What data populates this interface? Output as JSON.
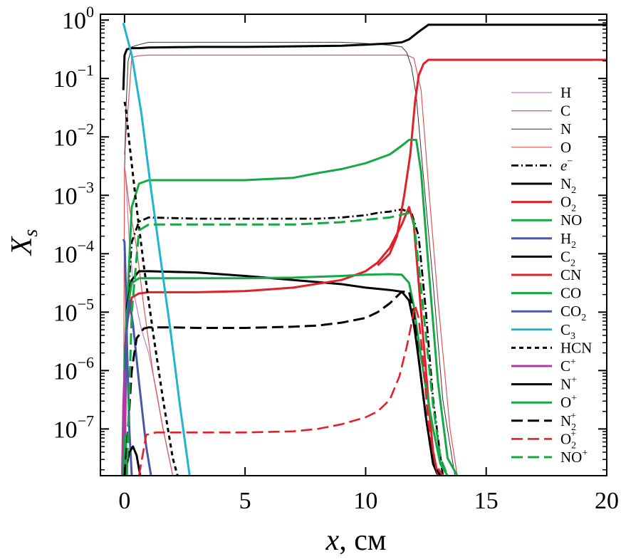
{
  "chart_data": {
    "type": "line",
    "xlabel_var": "x",
    "xlabel_unit": ", см",
    "ylabel_var": "X",
    "ylabel_sub": "s",
    "xlim": [
      -1,
      20
    ],
    "ylim_log10": [
      -7.8,
      0.1
    ],
    "x_ticks": [
      {
        "value": 0,
        "label": "0"
      },
      {
        "value": 5,
        "label": "5"
      },
      {
        "value": 10,
        "label": "10"
      },
      {
        "value": 15,
        "label": "15"
      },
      {
        "value": 20,
        "label": "20"
      }
    ],
    "y_ticks": [
      {
        "exp": 0,
        "base": "10",
        "sup": "0"
      },
      {
        "exp": -1,
        "base": "10",
        "sup": "−1"
      },
      {
        "exp": -2,
        "base": "10",
        "sup": "−2"
      },
      {
        "exp": -3,
        "base": "10",
        "sup": "−3"
      },
      {
        "exp": -4,
        "base": "10",
        "sup": "−4"
      },
      {
        "exp": -5,
        "base": "10",
        "sup": "−5"
      },
      {
        "exp": -6,
        "base": "10",
        "sup": "−6"
      },
      {
        "exp": -7,
        "base": "10",
        "sup": "−7"
      }
    ],
    "series": [
      {
        "name": "H",
        "label": "H",
        "sub": "",
        "sup": "",
        "italic": false,
        "color": "#c77cc4",
        "width": 1.2,
        "dash": "",
        "x": [
          0,
          0.05,
          0.2,
          0.4,
          0.7,
          1.0,
          1.3,
          1.6,
          2.0
        ],
        "y": [
          -2.5,
          -2.7,
          -3.8,
          -4.7,
          -5.3,
          -5.7,
          -6.3,
          -7.0,
          -7.8
        ]
      },
      {
        "name": "C",
        "label": "C",
        "sub": "",
        "sup": "",
        "italic": false,
        "color": "#e05555",
        "width": 1.2,
        "dash": "",
        "x": [
          0,
          0.05,
          0.15,
          0.3,
          0.6,
          1.0,
          3,
          5,
          7,
          9,
          10,
          11,
          11.7,
          12.0,
          12.3,
          12.6,
          13.0,
          13.5,
          13.8
        ],
        "y": [
          -2.3,
          -2.0,
          -1.5,
          -0.64,
          -0.61,
          -0.6,
          -0.6,
          -0.6,
          -0.6,
          -0.6,
          -0.6,
          -0.6,
          -0.6,
          -0.65,
          -1.2,
          -2.8,
          -4.8,
          -7.0,
          -7.8
        ]
      },
      {
        "name": "N",
        "label": "N",
        "sub": "",
        "sup": "",
        "italic": false,
        "color": "#333333",
        "width": 1.0,
        "dash": "",
        "x": [
          0,
          0.05,
          0.15,
          0.3,
          0.6,
          1.0,
          3,
          5,
          7,
          9,
          10,
          11,
          11.5,
          11.7,
          11.9,
          12.1,
          12.4,
          12.8,
          13.2,
          13.7
        ],
        "y": [
          -2.6,
          -1.6,
          -0.7,
          -0.46,
          -0.42,
          -0.38,
          -0.38,
          -0.38,
          -0.38,
          -0.38,
          -0.4,
          -0.43,
          -0.46,
          -0.55,
          -0.8,
          -1.3,
          -2.7,
          -4.5,
          -6.5,
          -7.8
        ]
      },
      {
        "name": "O",
        "label": "O",
        "sub": "",
        "sup": "",
        "italic": false,
        "color": "#e05555",
        "width": 1.2,
        "dash": "",
        "x": [
          -0.05,
          0,
          0.2,
          0.5,
          0.8,
          1.2,
          1.6,
          2.0
        ],
        "y": [
          -7.8,
          -2.5,
          -3.2,
          -3.9,
          -4.9,
          -6.1,
          -7.0,
          -7.8
        ]
      },
      {
        "name": "e-",
        "label": "e",
        "sub": "",
        "sup": "−",
        "italic": true,
        "color": "#000000",
        "width": 2.8,
        "dash": "10,4,2,4",
        "x": [
          -0.05,
          0,
          0.1,
          0.3,
          0.6,
          1.0,
          3,
          5,
          7,
          8,
          9,
          10,
          10.5,
          11,
          11.5,
          11.9,
          12.2,
          12.5,
          12.8,
          13.2
        ],
        "y": [
          -7.0,
          -6.3,
          -5.0,
          -3.8,
          -3.45,
          -3.38,
          -3.4,
          -3.4,
          -3.4,
          -3.4,
          -3.38,
          -3.34,
          -3.3,
          -3.28,
          -3.24,
          -3.3,
          -3.7,
          -5.0,
          -6.5,
          -7.8
        ]
      },
      {
        "name": "N2",
        "label": "N",
        "sub": "2",
        "sup": "",
        "italic": false,
        "color": "#000000",
        "width": 3.0,
        "dash": "",
        "x": [
          -0.05,
          0.0,
          0.1,
          0.3,
          0.6,
          1.0,
          3,
          5,
          7,
          9,
          10,
          11,
          11.5,
          11.8,
          12.2,
          12.6,
          14,
          16,
          18,
          20
        ],
        "y": [
          -1.2,
          -0.6,
          -0.5,
          -0.48,
          -0.48,
          -0.47,
          -0.46,
          -0.46,
          -0.45,
          -0.44,
          -0.42,
          -0.4,
          -0.38,
          -0.33,
          -0.2,
          -0.08,
          -0.08,
          -0.08,
          -0.08,
          -0.08
        ]
      },
      {
        "name": "O2",
        "label": "O",
        "sub": "2",
        "sup": "",
        "italic": false,
        "color": "#e0202a",
        "width": 3.0,
        "dash": "",
        "x": [
          10.5,
          11,
          11.3,
          11.6,
          11.85,
          12.05,
          12.2,
          12.4,
          12.6,
          14,
          16,
          18,
          20
        ],
        "y": [
          -4.2,
          -4.0,
          -3.7,
          -3.0,
          -2.3,
          -1.4,
          -0.95,
          -0.75,
          -0.68,
          -0.68,
          -0.68,
          -0.68,
          -0.68
        ]
      },
      {
        "name": "NO",
        "label": "NO",
        "sub": "",
        "sup": "",
        "italic": false,
        "color": "#15a845",
        "width": 3.0,
        "dash": "",
        "x": [
          0,
          0.1,
          0.3,
          0.6,
          1.0,
          3,
          5,
          7,
          8,
          9,
          10,
          11,
          11.5,
          11.8,
          12.1,
          12.3,
          12.6,
          13.0,
          13.4,
          13.8
        ],
        "y": [
          -7.8,
          -5.0,
          -3.2,
          -2.8,
          -2.74,
          -2.74,
          -2.74,
          -2.7,
          -2.62,
          -2.55,
          -2.45,
          -2.3,
          -2.15,
          -2.05,
          -2.05,
          -2.6,
          -4.2,
          -6.2,
          -7.5,
          -7.8
        ]
      },
      {
        "name": "H2",
        "label": "H",
        "sub": "2",
        "sup": "",
        "italic": false,
        "color": "#4a57a8",
        "width": 3.0,
        "dash": "",
        "x": [
          -0.05,
          0,
          0.05,
          0.1,
          0.2,
          0.3
        ],
        "y": [
          -3.75,
          -3.8,
          -4.5,
          -5.5,
          -7.0,
          -7.8
        ]
      },
      {
        "name": "C2",
        "label": "C",
        "sub": "2",
        "sup": "",
        "italic": false,
        "color": "#000000",
        "width": 3.0,
        "dash": "",
        "x": [
          -0.05,
          0,
          0.1,
          0.3,
          0.6,
          1.0,
          3,
          5,
          7,
          9,
          10,
          11,
          11.5,
          11.8,
          12.0,
          12.2,
          12.5,
          12.8,
          13.0
        ],
        "y": [
          -7.8,
          -6.0,
          -4.9,
          -4.45,
          -4.3,
          -4.3,
          -4.32,
          -4.38,
          -4.45,
          -4.52,
          -4.58,
          -4.62,
          -4.65,
          -4.8,
          -5.2,
          -5.8,
          -6.8,
          -7.6,
          -7.8
        ]
      },
      {
        "name": "CN",
        "label": "CN",
        "sub": "",
        "sup": "",
        "italic": false,
        "color": "#e0202a",
        "width": 3.0,
        "dash": "",
        "x": [
          -0.05,
          0,
          0.1,
          0.3,
          0.6,
          1.0,
          3,
          5,
          7,
          9,
          10,
          10.5,
          11,
          11.5,
          11.8,
          12.0,
          12.2,
          12.4,
          12.6,
          12.8,
          13.0
        ],
        "y": [
          -7.8,
          -6.0,
          -5.2,
          -4.75,
          -4.68,
          -4.66,
          -4.66,
          -4.64,
          -4.58,
          -4.45,
          -4.3,
          -4.15,
          -3.9,
          -3.5,
          -3.2,
          -3.5,
          -4.5,
          -5.5,
          -6.5,
          -7.4,
          -7.8
        ]
      },
      {
        "name": "CO",
        "label": "CO",
        "sub": "",
        "sup": "",
        "italic": false,
        "color": "#15a845",
        "width": 3.0,
        "dash": "",
        "x": [
          -0.05,
          0,
          0.1,
          0.3,
          0.6,
          1.0,
          3,
          5,
          7,
          9,
          10,
          11,
          11.5,
          11.8,
          12.0,
          12.2,
          12.5,
          12.8,
          13.1,
          13.4
        ],
        "y": [
          -7.8,
          -6.0,
          -5.0,
          -4.5,
          -4.42,
          -4.42,
          -4.42,
          -4.42,
          -4.41,
          -4.38,
          -4.36,
          -4.35,
          -4.36,
          -4.5,
          -4.9,
          -5.5,
          -6.3,
          -7.0,
          -7.6,
          -7.8
        ]
      },
      {
        "name": "CO2",
        "label": "CO",
        "sub": "2",
        "sup": "",
        "italic": false,
        "color": "#4a57a8",
        "width": 3.0,
        "dash": "",
        "x": [
          0,
          0.05,
          0.2,
          0.35,
          0.6,
          0.9,
          1.1
        ],
        "y": [
          -7.8,
          -5.5,
          -4.8,
          -5.2,
          -6.2,
          -7.3,
          -7.8
        ]
      },
      {
        "name": "C3",
        "label": "C",
        "sub": "3",
        "sup": "",
        "italic": false,
        "color": "#1fb5cf",
        "width": 3.0,
        "dash": "",
        "x": [
          -0.05,
          0.3,
          0.7,
          1.1,
          1.5,
          1.9,
          2.3,
          2.7
        ],
        "y": [
          -0.05,
          -0.6,
          -1.6,
          -2.9,
          -4.1,
          -5.3,
          -6.6,
          -7.8
        ]
      },
      {
        "name": "HCN",
        "label": "HCN",
        "sub": "",
        "sup": "",
        "italic": false,
        "color": "#000000",
        "width": 3.0,
        "dash": "6,5",
        "x": [
          0,
          0.05,
          0.2,
          0.5,
          0.8,
          1.2,
          1.6,
          2.0,
          2.2
        ],
        "y": [
          -1.4,
          -1.5,
          -2.1,
          -3.2,
          -4.2,
          -5.4,
          -6.5,
          -7.5,
          -7.8
        ]
      },
      {
        "name": "C+",
        "label": "C",
        "sub": "",
        "sup": "+",
        "italic": false,
        "color": "#b03aa4",
        "width": 3.0,
        "dash": "",
        "x": [
          -0.1,
          -0.05,
          0.0,
          0.05
        ],
        "y": [
          -7.8,
          -6.6,
          -6.0,
          -7.8
        ]
      },
      {
        "name": "N+",
        "label": "N",
        "sub": "",
        "sup": "+",
        "italic": false,
        "color": "#000000",
        "width": 3.0,
        "dash": "",
        "x": [
          0.0,
          0.2,
          0.35,
          0.5,
          0.65
        ],
        "y": [
          -7.8,
          -7.4,
          -7.3,
          -7.45,
          -7.8
        ]
      },
      {
        "name": "O+",
        "label": "O",
        "sub": "",
        "sup": "+",
        "italic": false,
        "color": "#15a845",
        "width": 3.0,
        "dash": "",
        "x": [
          -0.05,
          0.0,
          0.05,
          0.1
        ],
        "y": [
          -7.8,
          -7.2,
          -7.1,
          -7.8
        ]
      },
      {
        "name": "N2+",
        "label": "N",
        "sub": "2",
        "sup": "+",
        "italic": false,
        "color": "#000000",
        "width": 3.0,
        "dash": "16,7",
        "x": [
          0,
          0.1,
          0.3,
          0.5,
          0.8,
          1.0,
          2,
          3,
          5,
          7,
          8,
          9,
          10,
          10.5,
          11,
          11.5,
          11.8,
          12.0,
          12.2,
          12.5,
          12.8,
          13.1
        ],
        "y": [
          -7.8,
          -7.3,
          -6.0,
          -5.45,
          -5.28,
          -5.26,
          -5.26,
          -5.27,
          -5.27,
          -5.25,
          -5.23,
          -5.18,
          -5.1,
          -5.0,
          -4.85,
          -4.65,
          -4.65,
          -5.0,
          -5.8,
          -6.8,
          -7.6,
          -7.8
        ]
      },
      {
        "name": "O2+",
        "label": "O",
        "sub": "2",
        "sup": "+",
        "italic": false,
        "color": "#e0202a",
        "width": 2.6,
        "dash": "16,7",
        "x": [
          0.6,
          0.9,
          1.3,
          3,
          5,
          7,
          8,
          9,
          10,
          10.5,
          11,
          11.4,
          11.7,
          11.9,
          12.05,
          12.2,
          12.4,
          12.6,
          12.9,
          13.2
        ],
        "y": [
          -7.8,
          -7.1,
          -7.06,
          -7.06,
          -7.06,
          -7.04,
          -7.0,
          -6.92,
          -6.8,
          -6.7,
          -6.5,
          -6.1,
          -5.6,
          -5.2,
          -4.88,
          -5.1,
          -5.9,
          -6.9,
          -7.6,
          -7.8
        ]
      },
      {
        "name": "NO+",
        "label": "NO",
        "sub": "",
        "sup": "+",
        "italic": false,
        "color": "#15a845",
        "width": 3.0,
        "dash": "16,7",
        "x": [
          0.1,
          0.3,
          0.6,
          1.0,
          3,
          5,
          7,
          9,
          10,
          11,
          11.5,
          11.8,
          12.0,
          12.2,
          12.5,
          12.8,
          13.1,
          13.4
        ],
        "y": [
          -7.8,
          -5.0,
          -3.6,
          -3.5,
          -3.5,
          -3.5,
          -3.5,
          -3.46,
          -3.42,
          -3.38,
          -3.33,
          -3.3,
          -3.45,
          -4.2,
          -5.4,
          -6.6,
          -7.5,
          -7.8
        ]
      }
    ]
  }
}
